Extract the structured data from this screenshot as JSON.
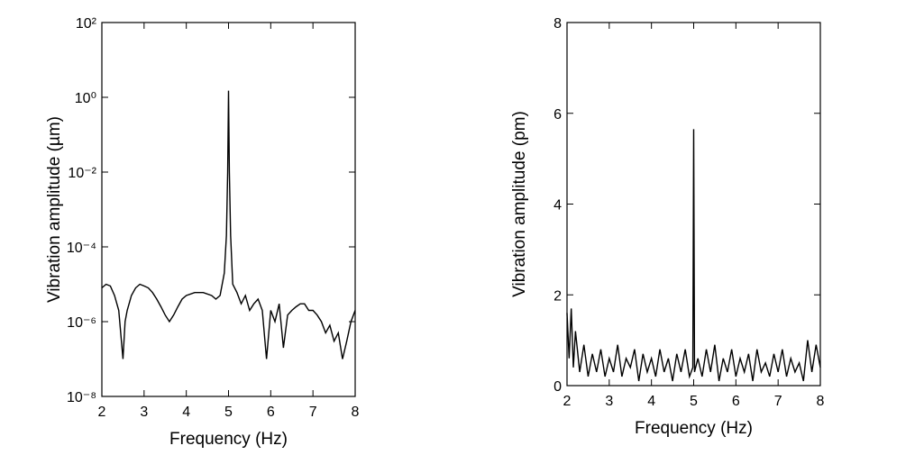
{
  "chart_data": [
    {
      "type": "line",
      "log_y": true,
      "color": "#000000",
      "ylabel": "Vibration amplitude (µm)",
      "xlabel": "Frequency (Hz)",
      "xlim": [
        2,
        8
      ],
      "xticks": [
        2,
        3,
        4,
        5,
        6,
        7,
        8
      ],
      "ylim": [
        1e-08,
        100
      ],
      "yticks": [
        {
          "value": 1e-08,
          "label": "10⁻⁸"
        },
        {
          "value": 1e-06,
          "label": "10⁻⁶"
        },
        {
          "value": 0.0001,
          "label": "10⁻⁴"
        },
        {
          "value": 0.01,
          "label": "10⁻²"
        },
        {
          "value": 1,
          "label": "10⁰"
        },
        {
          "value": 100,
          "label": "10²"
        }
      ],
      "x": [
        2.0,
        2.1,
        2.2,
        2.3,
        2.4,
        2.5,
        2.55,
        2.6,
        2.7,
        2.8,
        2.9,
        3.0,
        3.1,
        3.2,
        3.3,
        3.4,
        3.5,
        3.6,
        3.7,
        3.8,
        3.9,
        4.0,
        4.2,
        4.4,
        4.6,
        4.7,
        4.8,
        4.9,
        4.95,
        4.98,
        5.0,
        5.02,
        5.05,
        5.1,
        5.2,
        5.3,
        5.4,
        5.5,
        5.6,
        5.7,
        5.8,
        5.9,
        6.0,
        6.1,
        6.2,
        6.3,
        6.4,
        6.5,
        6.6,
        6.7,
        6.8,
        6.9,
        7.0,
        7.1,
        7.2,
        7.3,
        7.4,
        7.5,
        7.6,
        7.7,
        7.8,
        7.9,
        8.0
      ],
      "values": [
        8e-06,
        1e-05,
        9e-06,
        5e-06,
        2e-06,
        1e-07,
        1e-06,
        2e-06,
        5e-06,
        8e-06,
        1e-05,
        9e-06,
        8e-06,
        6e-06,
        4e-06,
        2.5e-06,
        1.5e-06,
        1e-06,
        1.5e-06,
        2.5e-06,
        4e-06,
        5e-06,
        6e-06,
        6e-06,
        5e-06,
        4e-06,
        5e-06,
        2e-05,
        0.0002,
        0.01,
        1.5,
        0.01,
        0.0002,
        1e-05,
        6e-06,
        3e-06,
        5e-06,
        2e-06,
        3e-06,
        4e-06,
        2e-06,
        1e-07,
        2e-06,
        1e-06,
        3e-06,
        2e-07,
        1.5e-06,
        2e-06,
        2.5e-06,
        3e-06,
        3e-06,
        2e-06,
        2e-06,
        1.5e-06,
        1e-06,
        5e-07,
        8e-07,
        3e-07,
        5e-07,
        1e-07,
        3e-07,
        1e-06,
        2e-06
      ]
    },
    {
      "type": "line",
      "log_y": false,
      "color": "#000000",
      "ylabel": "Vibration amplitude (pm)",
      "xlabel": "Frequency (Hz)",
      "xlim": [
        2,
        8
      ],
      "xticks": [
        2,
        3,
        4,
        5,
        6,
        7,
        8
      ],
      "ylim": [
        0,
        8
      ],
      "yticks": [
        0,
        2,
        4,
        6,
        8
      ],
      "x": [
        2.0,
        2.05,
        2.1,
        2.15,
        2.2,
        2.3,
        2.4,
        2.5,
        2.6,
        2.7,
        2.8,
        2.9,
        3.0,
        3.1,
        3.2,
        3.3,
        3.4,
        3.5,
        3.6,
        3.7,
        3.8,
        3.9,
        4.0,
        4.1,
        4.2,
        4.3,
        4.4,
        4.5,
        4.6,
        4.7,
        4.8,
        4.9,
        4.98,
        5.0,
        5.02,
        5.1,
        5.2,
        5.3,
        5.4,
        5.5,
        5.6,
        5.7,
        5.8,
        5.9,
        6.0,
        6.1,
        6.2,
        6.3,
        6.4,
        6.5,
        6.6,
        6.7,
        6.8,
        6.9,
        7.0,
        7.1,
        7.2,
        7.3,
        7.4,
        7.5,
        7.6,
        7.7,
        7.8,
        7.9,
        8.0
      ],
      "values": [
        1.6,
        0.6,
        1.7,
        0.4,
        1.2,
        0.3,
        0.9,
        0.2,
        0.7,
        0.3,
        0.8,
        0.2,
        0.6,
        0.3,
        0.9,
        0.2,
        0.6,
        0.4,
        0.8,
        0.1,
        0.7,
        0.3,
        0.6,
        0.2,
        0.8,
        0.3,
        0.6,
        0.1,
        0.7,
        0.3,
        0.8,
        0.2,
        0.4,
        5.65,
        0.3,
        0.6,
        0.2,
        0.8,
        0.3,
        0.9,
        0.1,
        0.6,
        0.3,
        0.8,
        0.2,
        0.6,
        0.3,
        0.7,
        0.1,
        0.8,
        0.3,
        0.5,
        0.2,
        0.7,
        0.3,
        0.8,
        0.2,
        0.6,
        0.3,
        0.5,
        0.1,
        1.0,
        0.3,
        0.9,
        0.4
      ]
    }
  ]
}
